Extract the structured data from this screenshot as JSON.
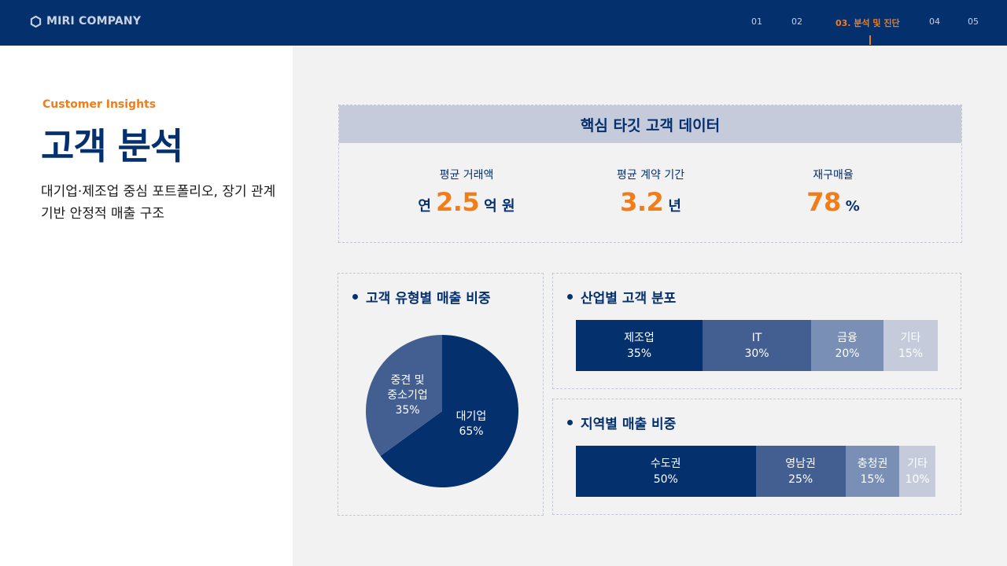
{
  "header": {
    "brand": "MIRI COMPANY",
    "nav": [
      {
        "label": "01",
        "active": false
      },
      {
        "label": "02",
        "active": false
      },
      {
        "label": "03. 분석 및 진단",
        "active": true
      },
      {
        "label": "04",
        "active": false
      },
      {
        "label": "05",
        "active": false
      }
    ]
  },
  "intro": {
    "eyebrow": "Customer Insights",
    "title": "고객 분석",
    "description": "대기업·제조업 중심 포트폴리오, 장기 관계 기반 안정적 매출 구조"
  },
  "kpi": {
    "title": "핵심 타깃 고객 데이터",
    "items": [
      {
        "label": "평균 거래액",
        "prefix": "연",
        "value": "2.5",
        "unit": "억 원"
      },
      {
        "label": "평균 계약 기간",
        "prefix": "",
        "value": "3.2",
        "unit": "년"
      },
      {
        "label": "재구매율",
        "prefix": "",
        "value": "78",
        "unit": "%"
      }
    ]
  },
  "customer_type": {
    "title": "고객 유형별 매출 비중",
    "slices": [
      {
        "label": "대기업",
        "value": "65%",
        "share": 65,
        "color": "#05306e"
      },
      {
        "label": "중견 및 중소기업",
        "label_lines": [
          "중견 및",
          "중소기업"
        ],
        "value": "35%",
        "share": 35,
        "color": "#435f92"
      }
    ]
  },
  "industry": {
    "title": "산업별 고객 분포",
    "segments": [
      {
        "label": "제조업",
        "value": "35%",
        "share": 35,
        "color": "#05306e",
        "text_color": "#ffffff"
      },
      {
        "label": "IT",
        "value": "30%",
        "share": 30,
        "color": "#435f92",
        "text_color": "#ffffff"
      },
      {
        "label": "금융",
        "value": "20%",
        "share": 20,
        "color": "#7a8fb5",
        "text_color": "#ffffff"
      },
      {
        "label": "기타",
        "value": "15%",
        "share": 15,
        "color": "#c5cbdb",
        "text_color": "#ffffff"
      }
    ]
  },
  "region": {
    "title": "지역별 매출 비중",
    "segments": [
      {
        "label": "수도권",
        "value": "50%",
        "share": 50,
        "color": "#05306e",
        "text_color": "#ffffff"
      },
      {
        "label": "영남권",
        "value": "25%",
        "share": 25,
        "color": "#435f92",
        "text_color": "#ffffff"
      },
      {
        "label": "충청권",
        "value": "15%",
        "share": 15,
        "color": "#7a8fb5",
        "text_color": "#ffffff"
      },
      {
        "label": "기타",
        "value": "10%",
        "share": 10,
        "color": "#c5cbdb",
        "text_color": "#ffffff"
      }
    ]
  }
}
